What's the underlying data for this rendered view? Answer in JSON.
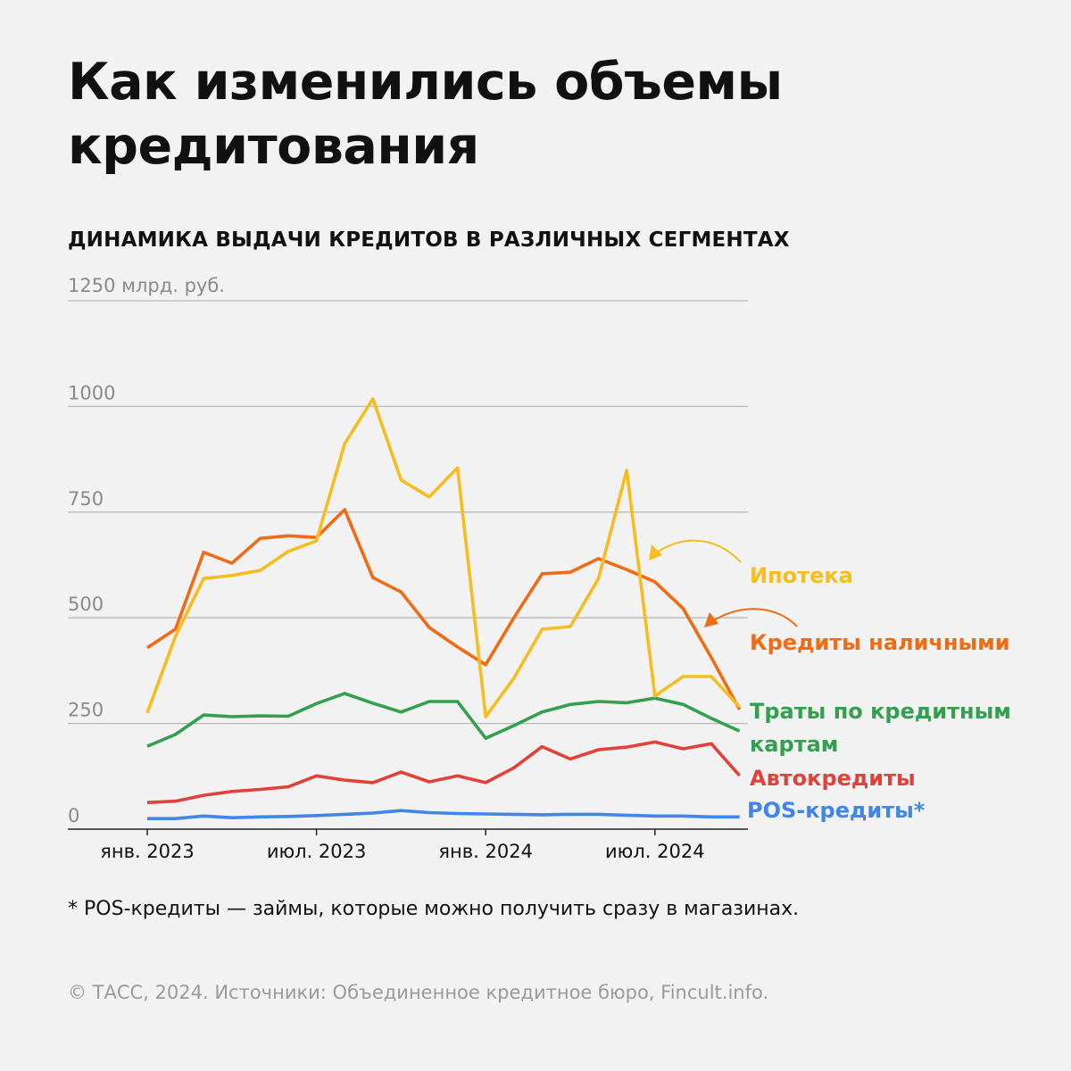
{
  "title": "Как изменились объемы кредитования",
  "chart_data": {
    "type": "line",
    "title": "ДИНАМИКА ВЫДАЧИ КРЕДИТОВ В РАЗЛИЧНЫХ СЕГМЕНТАХ",
    "ylabel": "млрд. руб.",
    "unit_label": "1250 млрд. руб.",
    "ylim": [
      0,
      1250
    ],
    "yticks": [
      0,
      250,
      500,
      750,
      1000,
      1250
    ],
    "ytick_labels": [
      "0",
      "250",
      "500",
      "750",
      "1000"
    ],
    "grid": true,
    "x": [
      "2023-01",
      "2023-02",
      "2023-03",
      "2023-04",
      "2023-05",
      "2023-06",
      "2023-07",
      "2023-08",
      "2023-09",
      "2023-10",
      "2023-11",
      "2023-12",
      "2024-01",
      "2024-02",
      "2024-03",
      "2024-04",
      "2024-05",
      "2024-06",
      "2024-07",
      "2024-08",
      "2024-09",
      "2024-10"
    ],
    "xticks": [
      {
        "x": "2023-01",
        "label": "янв. 2023"
      },
      {
        "x": "2023-07",
        "label": "июл. 2023"
      },
      {
        "x": "2024-01",
        "label": "янв. 2024"
      },
      {
        "x": "2024-07",
        "label": "июл. 2024"
      }
    ],
    "legend_placement": "right (direct labels)",
    "series": [
      {
        "name": "Ипотека",
        "color": "#f5bd1f",
        "values": [
          275,
          456,
          593,
          600,
          612,
          657,
          682,
          912,
          1018,
          826,
          786,
          855,
          266,
          357,
          473,
          479,
          593,
          849,
          315,
          361,
          361,
          289
        ]
      },
      {
        "name": "Кредиты наличными",
        "color": "#ef6c15",
        "values": [
          429,
          473,
          655,
          629,
          688,
          694,
          690,
          756,
          595,
          561,
          477,
          431,
          389,
          500,
          604,
          608,
          640,
          614,
          585,
          522,
          406,
          283
        ]
      },
      {
        "name": "Траты по кредитным картам",
        "name_lines": [
          "Траты по кредитным",
          "картам"
        ],
        "color": "#34a04f",
        "values": [
          196,
          224,
          270,
          266,
          268,
          267,
          297,
          321,
          298,
          277,
          302,
          302,
          215,
          245,
          277,
          295,
          302,
          299,
          310,
          295,
          262,
          232
        ]
      },
      {
        "name": "Автокредиты",
        "color": "#e0413a",
        "values": [
          63,
          66,
          80,
          89,
          94,
          100,
          126,
          116,
          110,
          135,
          112,
          126,
          110,
          145,
          195,
          166,
          188,
          194,
          206,
          190,
          202,
          127
        ]
      },
      {
        "name": "POS-кредиты*",
        "color": "#3f86e8",
        "values": [
          25,
          25,
          31,
          27,
          29,
          30,
          32,
          35,
          38,
          44,
          39,
          37,
          36,
          35,
          34,
          35,
          35,
          33,
          31,
          31,
          29,
          29
        ]
      }
    ]
  },
  "footnote": "* POS-кредиты — займы, которые можно получить сразу в магазинах.",
  "source": "© ТАСС, 2024. Источники: Объединенное кредитное бюро, Fincult.info."
}
